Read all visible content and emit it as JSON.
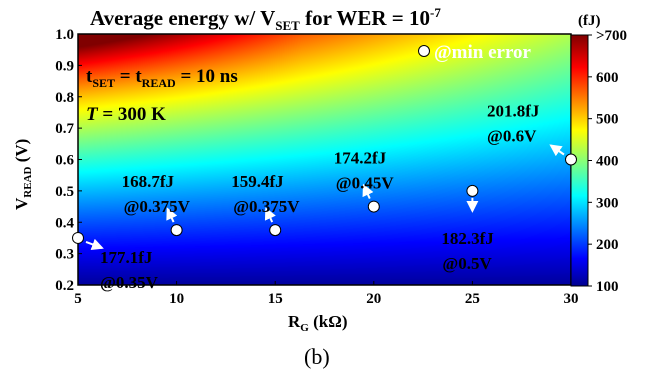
{
  "chart_data": {
    "type": "heatmap",
    "title": "Average energy w/ V",
    "title_sub": "SET",
    "title_mid": " for WER = 10",
    "title_sup": "-7",
    "unit": "(fJ)",
    "xlabel": "R",
    "xlabel_sub": "G",
    "xlabel_unit": " (kΩ)",
    "ylabel": "V",
    "ylabel_sub": "READ",
    "ylabel_unit": " (V)",
    "xlim": [
      5,
      30
    ],
    "ylim": [
      0.2,
      1.0
    ],
    "xticks": [
      "5",
      "10",
      "15",
      "20",
      "25",
      "30"
    ],
    "yticks": [
      "0.2",
      "0.3",
      "0.4",
      "0.5",
      "0.6",
      "0.7",
      "0.8",
      "0.9",
      "1.0"
    ],
    "colorbar": {
      "min": 100,
      "max": 700,
      "ticks": [
        "100",
        "200",
        "300",
        "400",
        "500",
        "600",
        ">700"
      ],
      "colormap": "jet"
    },
    "legend": "@min error",
    "annotation_t": {
      "t": "t",
      "sub1": "SET",
      "mid": " = t",
      "sub2": "READ",
      "tail": " = 10 ns"
    },
    "annotation_temp": {
      "T": "T",
      "tail": " = 300 K"
    },
    "points": [
      {
        "x": 5,
        "y": 0.35,
        "energy": "177.1fJ",
        "voltage": "@0.35V"
      },
      {
        "x": 10,
        "y": 0.375,
        "energy": "168.7fJ",
        "voltage": "@0.375V"
      },
      {
        "x": 15,
        "y": 0.375,
        "energy": "159.4fJ",
        "voltage": "@0.375V"
      },
      {
        "x": 20,
        "y": 0.45,
        "energy": "174.2fJ",
        "voltage": "@0.45V"
      },
      {
        "x": 25,
        "y": 0.5,
        "energy": "182.3fJ",
        "voltage": "@0.5V"
      },
      {
        "x": 30,
        "y": 0.6,
        "energy": "201.8fJ",
        "voltage": "@0.6V"
      }
    ]
  },
  "caption": "(b)"
}
